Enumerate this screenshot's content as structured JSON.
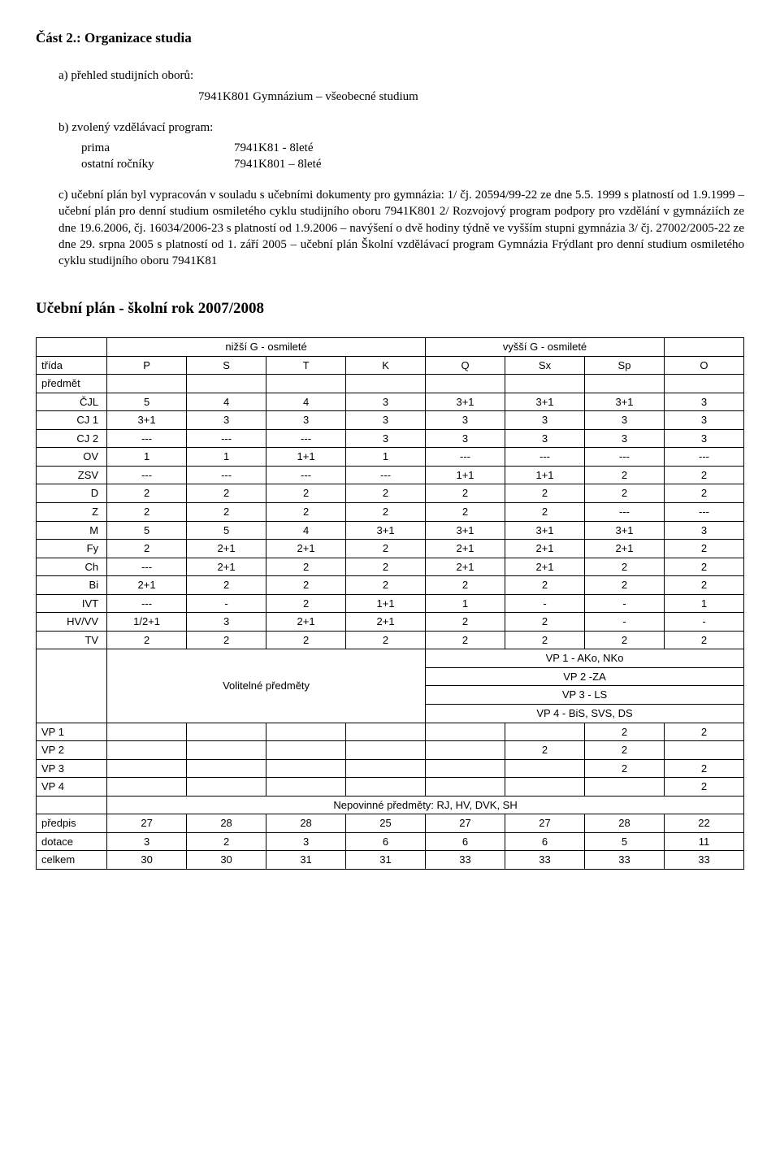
{
  "heading": "Část 2.: Organizace studia",
  "a_label": "a)  přehled studijních oborů:",
  "a_line": "7941K801 Gymnázium – všeobecné studium",
  "b_label": "b)  zvolený vzdělávací program:",
  "b_row1_col1": "prima",
  "b_row1_col2": "7941K81 - 8leté",
  "b_row2_col1": "ostatní ročníky",
  "b_row2_col2": "7941K801 – 8leté",
  "c_text": "c)  učební plán byl vypracován v souladu s učebními dokumenty pro gymnázia: 1/ čj. 20594/99-22 ze dne 5.5. 1999 s platností od 1.9.1999 – učební plán pro denní studium osmiletého cyklu studijního oboru 7941K801 2/ Rozvojový program podpory pro vzdělání v gymnáziích ze dne 19.6.2006, čj. 16034/2006-23 s platností od 1.9.2006 – navýšení o dvě hodiny týdně ve vyšším stupni gymnázia 3/ čj. 27002/2005-22 ze dne 29. srpna 2005 s platností od 1. září 2005 – učební plán Školní vzdělávací program Gymnázia Frýdlant pro denní studium osmiletého cyklu studijního oboru 7941K81",
  "plan_heading": "Učební plán  -  školní rok 2007/2008",
  "table": {
    "group_headers": {
      "lower": "nižší G - osmileté",
      "upper": "vyšší G - osmileté"
    },
    "col_labels": {
      "trida": "třída",
      "cols": [
        "P",
        "S",
        "T",
        "K",
        "Q",
        "Sx",
        "Sp",
        "O"
      ]
    },
    "predmet_label": "předmět",
    "subjects": [
      {
        "name": "ČJL",
        "vals": [
          "5",
          "4",
          "4",
          "3",
          "3+1",
          "3+1",
          "3+1",
          "3"
        ]
      },
      {
        "name": "CJ 1",
        "vals": [
          "3+1",
          "3",
          "3",
          "3",
          "3",
          "3",
          "3",
          "3"
        ]
      },
      {
        "name": "CJ 2",
        "vals": [
          "---",
          "---",
          "---",
          "3",
          "3",
          "3",
          "3",
          "3"
        ]
      },
      {
        "name": "OV",
        "vals": [
          "1",
          "1",
          "1+1",
          "1",
          "---",
          "---",
          "---",
          "---"
        ]
      },
      {
        "name": "ZSV",
        "vals": [
          "---",
          "---",
          "---",
          "---",
          "1+1",
          "1+1",
          "2",
          "2"
        ]
      },
      {
        "name": "D",
        "vals": [
          "2",
          "2",
          "2",
          "2",
          "2",
          "2",
          "2",
          "2"
        ]
      },
      {
        "name": "Z",
        "vals": [
          "2",
          "2",
          "2",
          "2",
          "2",
          "2",
          "---",
          "---"
        ]
      },
      {
        "name": "M",
        "vals": [
          "5",
          "5",
          "4",
          "3+1",
          "3+1",
          "3+1",
          "3+1",
          "3"
        ]
      },
      {
        "name": "Fy",
        "vals": [
          "2",
          "2+1",
          "2+1",
          "2",
          "2+1",
          "2+1",
          "2+1",
          "2"
        ]
      },
      {
        "name": "Ch",
        "vals": [
          "---",
          "2+1",
          "2",
          "2",
          "2+1",
          "2+1",
          "2",
          "2"
        ]
      },
      {
        "name": "Bi",
        "vals": [
          "2+1",
          "2",
          "2",
          "2",
          "2",
          "2",
          "2",
          "2"
        ]
      },
      {
        "name": "IVT",
        "vals": [
          "---",
          "-",
          "2",
          "1+1",
          "1",
          "-",
          "-",
          "1"
        ]
      },
      {
        "name": "HV/VV",
        "vals": [
          "1/2+1",
          "3",
          "2+1",
          "2+1",
          "2",
          "2",
          "-",
          "-"
        ]
      },
      {
        "name": "TV",
        "vals": [
          "2",
          "2",
          "2",
          "2",
          "2",
          "2",
          "2",
          "2"
        ]
      }
    ],
    "vp_block": {
      "left_label": "Volitelné předměty",
      "lines": [
        "VP 1 - AKo, NKo",
        "VP 2 -ZA",
        "VP 3 - LS",
        "VP 4 - BiS, SVS, DS"
      ]
    },
    "vp_rows": [
      {
        "name": "VP 1",
        "vals": [
          "",
          "",
          "",
          "",
          "",
          "",
          "2",
          "2"
        ]
      },
      {
        "name": "VP 2",
        "vals": [
          "",
          "",
          "",
          "",
          "",
          "2",
          "2",
          ""
        ]
      },
      {
        "name": "VP 3",
        "vals": [
          "",
          "",
          "",
          "",
          "",
          "",
          "2",
          "2"
        ]
      },
      {
        "name": "VP 4",
        "vals": [
          "",
          "",
          "",
          "",
          "",
          "",
          "",
          "2"
        ]
      }
    ],
    "nepovinne": "Nepovinné předměty: RJ, HV, DVK, SH",
    "footer": [
      {
        "name": "předpis",
        "vals": [
          "27",
          "28",
          "28",
          "25",
          "27",
          "27",
          "28",
          "22"
        ]
      },
      {
        "name": "dotace",
        "vals": [
          "3",
          "2",
          "3",
          "6",
          "6",
          "6",
          "5",
          "11"
        ]
      },
      {
        "name": "celkem",
        "vals": [
          "30",
          "30",
          "31",
          "31",
          "33",
          "33",
          "33",
          "33"
        ]
      }
    ]
  }
}
